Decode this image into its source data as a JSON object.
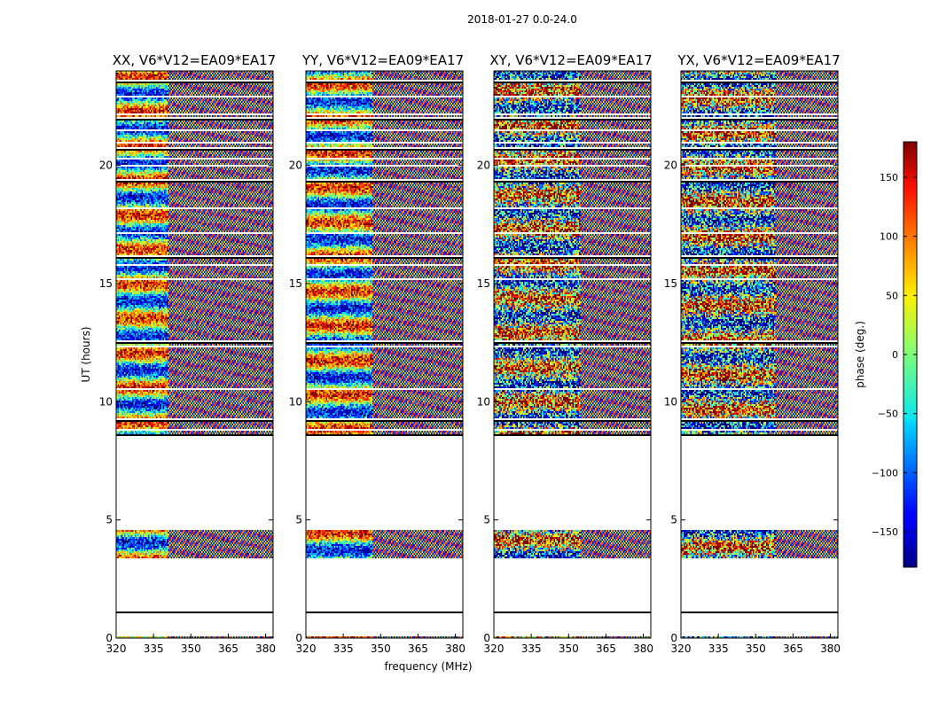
{
  "figure": {
    "suptitle": "2018-01-27 0.0-24.0"
  },
  "chart_data": [
    {
      "type": "heatmap",
      "title": "XX, V6*V12=EA09*EA17",
      "xlabel": "",
      "ylabel": "UT (hours)",
      "xlim": [
        320,
        383
      ],
      "ylim": [
        0,
        24
      ],
      "xticks": [
        320,
        335,
        350,
        365,
        380
      ],
      "yticks": [
        0,
        5,
        10,
        15,
        20
      ],
      "xtick_labels": [
        "320",
        "335",
        "350",
        "365",
        "380"
      ],
      "ytick_labels": [
        "0",
        "5",
        "10",
        "15",
        "20"
      ]
    },
    {
      "type": "heatmap",
      "title": "YY, V6*V12=EA09*EA17",
      "xlabel": "frequency (MHz)",
      "ylabel": "",
      "xlim": [
        320,
        383
      ],
      "ylim": [
        0,
        24
      ],
      "xticks": [
        320,
        335,
        350,
        365,
        380
      ],
      "yticks": [
        0,
        5,
        10,
        15,
        20
      ],
      "xtick_labels": [
        "320",
        "335",
        "350",
        "365",
        "380"
      ],
      "ytick_labels": [
        "0",
        "5",
        "10",
        "15",
        "20"
      ]
    },
    {
      "type": "heatmap",
      "title": "XY, V6*V12=EA09*EA17",
      "xlabel": "",
      "ylabel": "",
      "xlim": [
        320,
        383
      ],
      "ylim": [
        0,
        24
      ],
      "xticks": [
        320,
        335,
        350,
        365,
        380
      ],
      "yticks": [
        0,
        5,
        10,
        15,
        20
      ],
      "xtick_labels": [
        "320",
        "335",
        "350",
        "365",
        "380"
      ],
      "ytick_labels": [
        "0",
        "5",
        "10",
        "15",
        "20"
      ]
    },
    {
      "type": "heatmap",
      "title": "YX, V6*V12=EA09*EA17",
      "xlabel": "",
      "ylabel": "",
      "xlim": [
        320,
        383
      ],
      "ylim": [
        0,
        24
      ],
      "xticks": [
        320,
        335,
        350,
        365,
        380
      ],
      "yticks": [
        0,
        5,
        10,
        15,
        20
      ],
      "xtick_labels": [
        "320",
        "335",
        "350",
        "365",
        "380"
      ],
      "ytick_labels": [
        "0",
        "5",
        "10",
        "15",
        "20"
      ]
    }
  ],
  "data_coverage": {
    "filled_ut_ranges": [
      [
        0.0,
        0.1
      ],
      [
        1.1,
        1.15
      ],
      [
        3.4,
        4.6
      ],
      [
        8.6,
        24.0
      ]
    ],
    "gap_ut": [
      8.85,
      9.3,
      10.55,
      12.35,
      12.6,
      15.25,
      15.85,
      16.2,
      17.2,
      18.25,
      19.45,
      20.0,
      20.35,
      20.75,
      21.0,
      21.55,
      22.05,
      22.2,
      22.95,
      23.6
    ]
  },
  "colorbar": {
    "label": "phase (deg.)",
    "range": [
      -180,
      180
    ],
    "ticks": [
      -150,
      -100,
      -50,
      0,
      50,
      100,
      150
    ],
    "tick_labels": [
      "−150",
      "−100",
      "−50",
      "0",
      "50",
      "100",
      "150"
    ],
    "colormap": "jet"
  }
}
